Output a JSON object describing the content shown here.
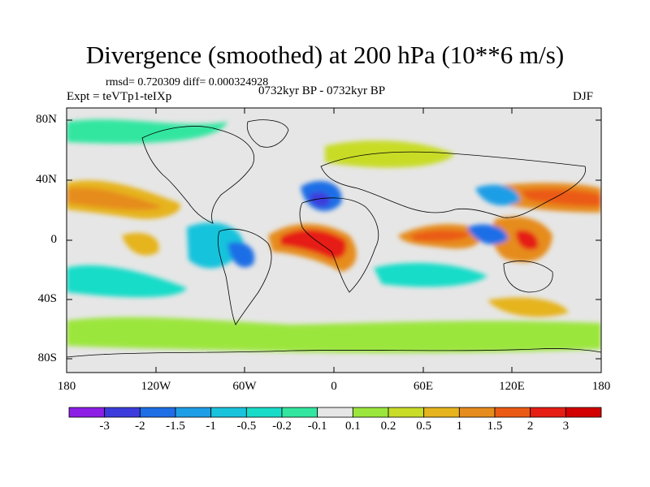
{
  "title": "Divergence (smoothed) at 200 hPa (10**6 m/s)",
  "stats": "rmsd= 0.720309 diff= 0.000324928",
  "experiment": "Expt = teVTp1-teIXp",
  "period": "0732kyr BP - 0732kyr BP",
  "season": "DJF",
  "lat_labels": [
    "80N",
    "40N",
    "0",
    "40S",
    "80S"
  ],
  "lon_labels": [
    "180",
    "120W",
    "60W",
    "0",
    "60E",
    "120E",
    "180"
  ],
  "colorbar": {
    "labels": [
      "-3",
      "-2",
      "-1.5",
      "-1",
      "-0.5",
      "-0.2",
      "-0.1",
      "0.1",
      "0.2",
      "0.5",
      "1",
      "1.5",
      "2",
      "3"
    ],
    "colors": [
      "#8c1ee6",
      "#3c3cdc",
      "#1e6ee6",
      "#1e9ee6",
      "#19c3dc",
      "#19dcc8",
      "#32e6a0",
      "#e6e6e6",
      "#9be63c",
      "#c8dc28",
      "#e6b41e",
      "#e68c1e",
      "#eb5a14",
      "#e61e14",
      "#d20000"
    ]
  },
  "map": {
    "projection": "cylindrical-equidistant",
    "lon_range": [
      -180,
      180
    ],
    "lat_range": [
      -90,
      90
    ]
  }
}
